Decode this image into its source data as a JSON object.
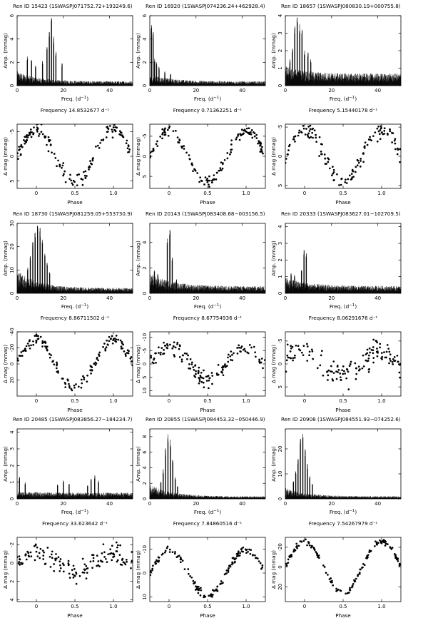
{
  "figure": {
    "amp_ylabel": "Amp. (mmag)",
    "amp_xlabel": "Freq. (d",
    "amp_xlabel_sup": "−1",
    "amp_xlabel_end": ")",
    "phase_ylabel": "Δ mag (mmag)",
    "phase_xlabel": "Phase",
    "freq_prefix": "Frequency",
    "freq_unit": "d",
    "freq_unit_sup": "−1"
  },
  "chart_data": [
    {
      "type": "line",
      "title": "Ren ID 15423   (1SWASPJ071752.72+193249.6)",
      "frequency_label": "Frequency 14.8532677 d⁻¹",
      "periodogram": {
        "xlim": [
          0,
          50
        ],
        "ylim": [
          0,
          6
        ],
        "xticks": [
          0,
          20,
          40
        ],
        "yticks": [
          0,
          2,
          4,
          6
        ],
        "noise": 1.0,
        "tail": 0.3,
        "peaks": [
          [
            14.85,
            5.8
          ],
          [
            13.9,
            4.6
          ],
          [
            15.8,
            4.2
          ],
          [
            12.9,
            3.3
          ],
          [
            16.8,
            2.9
          ],
          [
            4.4,
            2.5
          ],
          [
            6.2,
            2.2
          ],
          [
            11.0,
            2.1
          ],
          [
            19.4,
            1.9
          ],
          [
            8.0,
            1.7
          ]
        ]
      },
      "phase": {
        "xlim": [
          -0.25,
          1.25
        ],
        "ylim": [
          6.5,
          -6.5
        ],
        "xticks": [
          0,
          0.5,
          1
        ],
        "xtick_labels": [
          "0",
          "0.5",
          "1.0"
        ],
        "yticks": [
          -5,
          0,
          5
        ],
        "amplitude": 5.5,
        "min_phase": 0.5,
        "scatter": 1.0
      }
    },
    {
      "type": "line",
      "title": "Ren ID 16920   (1SWASPJ074236.24+462928.4)",
      "frequency_label": "Frequency 0.71362251 d⁻¹",
      "periodogram": {
        "xlim": [
          0,
          50
        ],
        "ylim": [
          0,
          6
        ],
        "xticks": [
          0,
          20,
          40
        ],
        "yticks": [
          0,
          2,
          4,
          6
        ],
        "noise": 0.8,
        "tail": 0.3,
        "peaks": [
          [
            0.7,
            5.2
          ],
          [
            1.4,
            4.6
          ],
          [
            2.1,
            2.3
          ],
          [
            2.9,
            2.0
          ],
          [
            4.0,
            1.6
          ],
          [
            6.5,
            1.2
          ],
          [
            9.0,
            1.0
          ]
        ]
      },
      "phase": {
        "xlim": [
          -0.25,
          1.25
        ],
        "ylim": [
          8,
          -8
        ],
        "xticks": [
          0,
          0.5,
          1
        ],
        "xtick_labels": [
          "0",
          "0.5",
          "1.0"
        ],
        "yticks": [
          -5,
          0,
          5
        ],
        "amplitude": 6.5,
        "min_phase": 0.5,
        "scatter": 1.0
      }
    },
    {
      "type": "line",
      "title": "Ren ID 18657   (1SWASPJ080830.19+000755.8)",
      "frequency_label": "Frequency 5.15440178 d⁻¹",
      "periodogram": {
        "xlim": [
          0,
          50
        ],
        "ylim": [
          0,
          4
        ],
        "xticks": [
          0,
          20,
          40
        ],
        "yticks": [
          0,
          1,
          2,
          3,
          4
        ],
        "noise": 0.9,
        "tail": 0.55,
        "peaks": [
          [
            5.15,
            3.9
          ],
          [
            6.2,
            3.5
          ],
          [
            4.1,
            3.4
          ],
          [
            7.2,
            3.2
          ],
          [
            3.1,
            2.1
          ],
          [
            8.3,
            2.0
          ],
          [
            9.8,
            1.9
          ],
          [
            11.0,
            1.5
          ],
          [
            2.0,
            1.5
          ]
        ]
      },
      "phase": {
        "xlim": [
          -0.25,
          1.25
        ],
        "ylim": [
          5.5,
          -5.5
        ],
        "xticks": [
          0,
          0.5,
          1
        ],
        "xtick_labels": [
          "0",
          "0.5",
          "1.0"
        ],
        "yticks": [
          -5,
          0,
          5
        ],
        "amplitude": 4.5,
        "min_phase": 0.5,
        "scatter": 1.0
      }
    },
    {
      "type": "line",
      "title": "Ren ID 18730   (1SWASPJ081259.05+553730.9)",
      "frequency_label": "Frequency 8.86711502 d⁻¹",
      "periodogram": {
        "xlim": [
          0,
          50
        ],
        "ylim": [
          0,
          30
        ],
        "xticks": [
          0,
          20,
          40
        ],
        "yticks": [
          0,
          10,
          20,
          30
        ],
        "noise": 8.0,
        "tail": 1.8,
        "peaks": [
          [
            8.87,
            29.0
          ],
          [
            9.9,
            28.0
          ],
          [
            7.8,
            26.0
          ],
          [
            10.9,
            23.0
          ],
          [
            6.8,
            22.0
          ],
          [
            12.0,
            17.0
          ],
          [
            5.7,
            16.0
          ],
          [
            13.0,
            13.0
          ],
          [
            4.6,
            11.0
          ],
          [
            14.1,
            9.0
          ]
        ]
      },
      "phase": {
        "xlim": [
          -0.25,
          1.25
        ],
        "ylim": [
          40,
          -40
        ],
        "xticks": [
          0,
          0.5,
          1
        ],
        "xtick_labels": [
          "0",
          "0.5",
          "1.0"
        ],
        "yticks": [
          -40,
          -20,
          0,
          20
        ],
        "amplitude": 30,
        "min_phase": 0.5,
        "scatter": 5.0
      }
    },
    {
      "type": "line",
      "title": "Ren ID 20143   (1SWASPJ083408.68−003156.5)",
      "frequency_label": "Frequency 8.67754936 d⁻¹",
      "periodogram": {
        "xlim": [
          0,
          50
        ],
        "ylim": [
          0,
          5.5
        ],
        "xticks": [
          0,
          20,
          40
        ],
        "yticks": [
          0,
          2,
          4
        ],
        "noise": 1.3,
        "tail": 0.45,
        "peaks": [
          [
            8.68,
            5.0
          ],
          [
            7.6,
            4.3
          ],
          [
            9.7,
            2.8
          ],
          [
            2.0,
            1.8
          ],
          [
            3.5,
            1.5
          ],
          [
            11.5,
            1.1
          ]
        ]
      },
      "phase": {
        "xlim": [
          -0.25,
          1.25
        ],
        "ylim": [
          12,
          -12
        ],
        "xticks": [
          0,
          0.5,
          1
        ],
        "xtick_labels": [
          "0",
          "0.5",
          "1.0"
        ],
        "yticks": [
          -10,
          -5,
          0,
          5,
          10
        ],
        "amplitude": 6,
        "min_phase": 0.5,
        "scatter": 2.2
      }
    },
    {
      "type": "line",
      "title": "Ren ID 20333   (1SWASPJ083627.01−102709.5)",
      "frequency_label": "Frequency 8.06291676 d⁻¹",
      "periodogram": {
        "xlim": [
          0,
          50
        ],
        "ylim": [
          0,
          4.2
        ],
        "xticks": [
          0,
          20,
          40
        ],
        "yticks": [
          0,
          1,
          2,
          3,
          4
        ],
        "noise": 0.8,
        "tail": 0.35,
        "peaks": [
          [
            8.06,
            2.6
          ],
          [
            9.1,
            2.4
          ],
          [
            7.0,
            1.4
          ],
          [
            2.5,
            1.2
          ],
          [
            4.0,
            1.1
          ]
        ]
      },
      "phase": {
        "xlim": [
          -0.25,
          1.25
        ],
        "ylim": [
          7,
          -7
        ],
        "xticks": [
          0,
          0.5,
          1
        ],
        "xtick_labels": [
          "0",
          "0.5",
          "1.0"
        ],
        "yticks": [
          -5,
          0,
          5
        ],
        "amplitude": 2.5,
        "min_phase": 0.5,
        "scatter": 2.0
      }
    },
    {
      "type": "line",
      "title": "Ren ID 20485   (1SWASPJ083856.27−184234.7)",
      "frequency_label": "Frequency 33.623642 d⁻¹",
      "periodogram": {
        "xlim": [
          0,
          50
        ],
        "ylim": [
          0,
          4.2
        ],
        "xticks": [
          0,
          20,
          40
        ],
        "yticks": [
          0,
          1,
          2,
          3,
          4
        ],
        "noise": 0.35,
        "tail": 0.3,
        "peaks": [
          [
            1.0,
            1.3
          ],
          [
            3.5,
            1.0
          ],
          [
            20.0,
            1.1
          ],
          [
            22.5,
            0.9
          ],
          [
            17.5,
            0.85
          ],
          [
            33.6,
            1.4
          ],
          [
            32.0,
            1.2
          ],
          [
            35.2,
            1.1
          ],
          [
            30.5,
            0.8
          ]
        ]
      },
      "phase": {
        "xlim": [
          -0.25,
          1.25
        ],
        "ylim": [
          4.2,
          -2.8
        ],
        "xticks": [
          0,
          0.5,
          1
        ],
        "xtick_labels": [
          "0",
          "0.5",
          "1.0"
        ],
        "yticks": [
          -2,
          0,
          2,
          4
        ],
        "amplitude": 1.0,
        "min_phase": 0.5,
        "scatter": 0.9
      }
    },
    {
      "type": "line",
      "title": "Ren ID 20855   (1SWASPJ084453.32−050446.9)",
      "frequency_label": "Frequency 7.84860516 d⁻¹",
      "periodogram": {
        "xlim": [
          0,
          50
        ],
        "ylim": [
          0,
          9
        ],
        "xticks": [
          0,
          20,
          40
        ],
        "yticks": [
          0,
          2,
          4,
          6,
          8
        ],
        "noise": 1.5,
        "tail": 0.25,
        "peaks": [
          [
            7.85,
            8.3
          ],
          [
            8.9,
            7.6
          ],
          [
            6.8,
            6.5
          ],
          [
            9.9,
            5.0
          ],
          [
            5.8,
            3.8
          ],
          [
            11.0,
            2.8
          ],
          [
            4.8,
            2.2
          ],
          [
            12.0,
            1.6
          ]
        ]
      },
      "phase": {
        "xlim": [
          -0.25,
          1.25
        ],
        "ylim": [
          12,
          -15
        ],
        "xticks": [
          0,
          0.5,
          1
        ],
        "xtick_labels": [
          "0",
          "0.5",
          "1.0"
        ],
        "yticks": [
          -10,
          0,
          10
        ],
        "amplitude": 9.5,
        "min_phase": 0.5,
        "scatter": 1.2
      }
    },
    {
      "type": "line",
      "title": "Ren ID 20908   (1SWASPJ084551.93−074252.6)",
      "frequency_label": "Frequency 7.54267979 d⁻¹",
      "periodogram": {
        "xlim": [
          0,
          50
        ],
        "ylim": [
          0,
          28
        ],
        "xticks": [
          0,
          20,
          40
        ],
        "yticks": [
          0,
          10,
          20
        ],
        "noise": 3.5,
        "tail": 0.8,
        "peaks": [
          [
            7.54,
            26.0
          ],
          [
            6.5,
            24.0
          ],
          [
            8.6,
            20.0
          ],
          [
            5.5,
            16.0
          ],
          [
            9.6,
            14.0
          ],
          [
            4.5,
            11.0
          ],
          [
            10.6,
            9.0
          ],
          [
            3.5,
            7.0
          ],
          [
            11.7,
            6.0
          ]
        ]
      },
      "phase": {
        "xlim": [
          -0.25,
          1.25
        ],
        "ylim": [
          35,
          -30
        ],
        "xticks": [
          0,
          0.5,
          1
        ],
        "xtick_labels": [
          "0",
          "0.5",
          "1.0"
        ],
        "yticks": [
          -20,
          0,
          20
        ],
        "amplitude": 26,
        "min_phase": 0.5,
        "scatter": 2.0
      }
    }
  ]
}
